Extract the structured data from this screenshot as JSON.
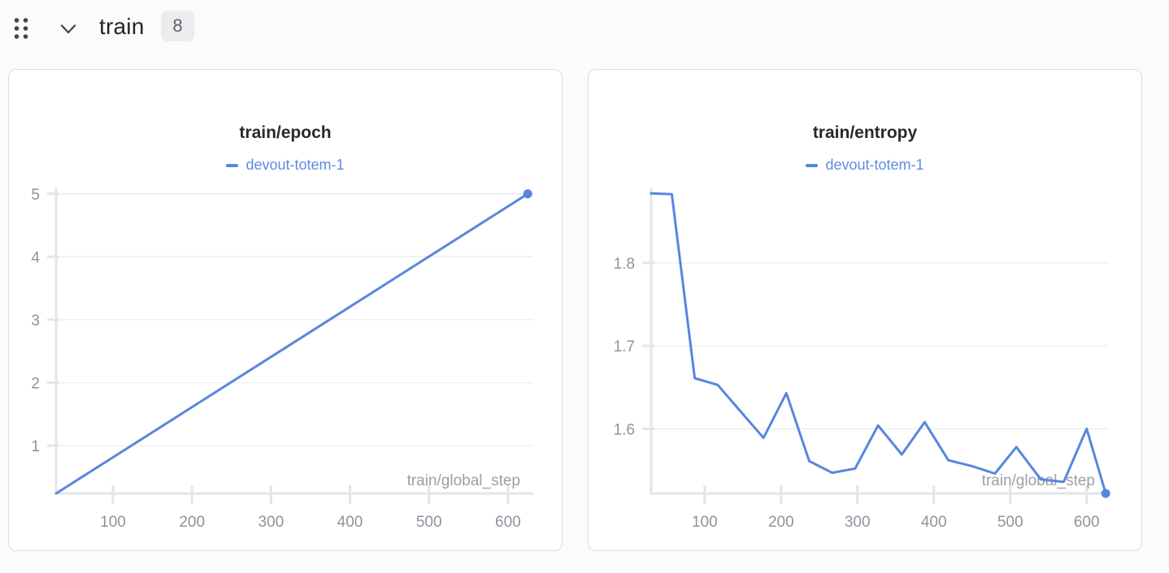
{
  "header": {
    "section_title": "train",
    "panel_count": "8",
    "icons": {
      "drag_handle": "grid-dots-icon",
      "collapse": "chevron-down-icon"
    }
  },
  "colors": {
    "line": "#5787dd",
    "legend_text": "#5d8ce2",
    "grid": "#ededef",
    "axis": "#e3e5e8",
    "tick_label": "#8e939c",
    "axis_label": "#9aa0a8",
    "title": "#262a2f",
    "card_border": "#dbdde0",
    "page_bg": "#fbfbfc",
    "badge_bg": "#ececee",
    "icon": "#41474e"
  },
  "chart_data": [
    {
      "type": "line",
      "title": "train/epoch",
      "xlabel": "train/global_step",
      "ylabel": "",
      "legend_position": "top",
      "grid": "horizontal",
      "xlim": [
        28,
        632
      ],
      "ylim": [
        0.24,
        5.1
      ],
      "xticks": [
        100,
        200,
        300,
        400,
        500,
        600
      ],
      "yticks": [
        1,
        2,
        3,
        4,
        5
      ],
      "end_marker": true,
      "series": [
        {
          "name": "devout-totem-1",
          "x": [
            28,
            625
          ],
          "y": [
            0.24,
            5.0
          ]
        }
      ]
    },
    {
      "type": "line",
      "title": "train/entropy",
      "xlabel": "train/global_step",
      "ylabel": "",
      "legend_position": "top",
      "grid": "horizontal",
      "xlim": [
        30,
        628
      ],
      "ylim": [
        1.522,
        1.891
      ],
      "xticks": [
        100,
        200,
        300,
        400,
        500,
        600
      ],
      "yticks": [
        1.6,
        1.7,
        1.8
      ],
      "end_marker": true,
      "series": [
        {
          "name": "devout-totem-1",
          "x": [
            30,
            57,
            87,
            117,
            147,
            177,
            207,
            237,
            267,
            297,
            327,
            358,
            388,
            419,
            450,
            480,
            508,
            540,
            570,
            600,
            625
          ],
          "y": [
            1.884,
            1.883,
            1.661,
            1.653,
            1.621,
            1.589,
            1.643,
            1.561,
            1.547,
            1.552,
            1.604,
            1.569,
            1.608,
            1.562,
            1.555,
            1.546,
            1.578,
            1.539,
            1.536,
            1.6,
            1.522
          ]
        }
      ]
    }
  ]
}
